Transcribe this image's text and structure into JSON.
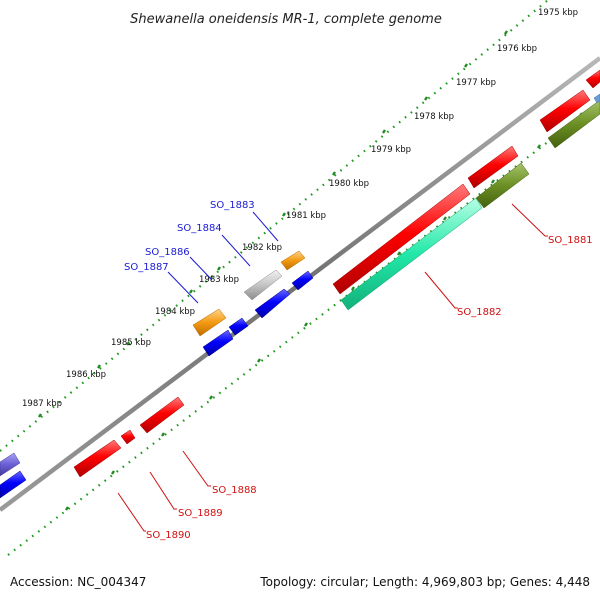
{
  "map": {
    "title": "Shewanella oneidensis MR-1, complete genome",
    "accession": "Accession: NC_004347",
    "summary": "Topology: circular; Length: 4,969,803 bp; Genes: 4,448"
  },
  "kbp_ticks": [
    "1975 kbp",
    "1976 kbp",
    "1977 kbp",
    "1978 kbp",
    "1979 kbp",
    "1980 kbp",
    "1981 kbp",
    "1982 kbp",
    "1983 kbp",
    "1984 kbp",
    "1985 kbp",
    "1986 kbp",
    "1987 kbp"
  ],
  "gene_labels": {
    "so_1883": "SO_1883",
    "so_1884": "SO_1884",
    "so_1886": "SO_1886",
    "so_1887": "SO_1887",
    "so_1881": "SO_1881",
    "so_1882": "SO_1882",
    "so_1888": "SO_1888",
    "so_1889": "SO_1889",
    "so_1890": "SO_1890"
  },
  "colors": {
    "red": "#ee0000",
    "blue": "#0000ee",
    "orange": "#f39a12",
    "olive": "#6b8f23",
    "teal": "#22e8a8",
    "gray": "#bdbdbd",
    "purple": "#6b5fd6",
    "backbone": "#808080",
    "ruler_dots": "#1f9a1f"
  }
}
